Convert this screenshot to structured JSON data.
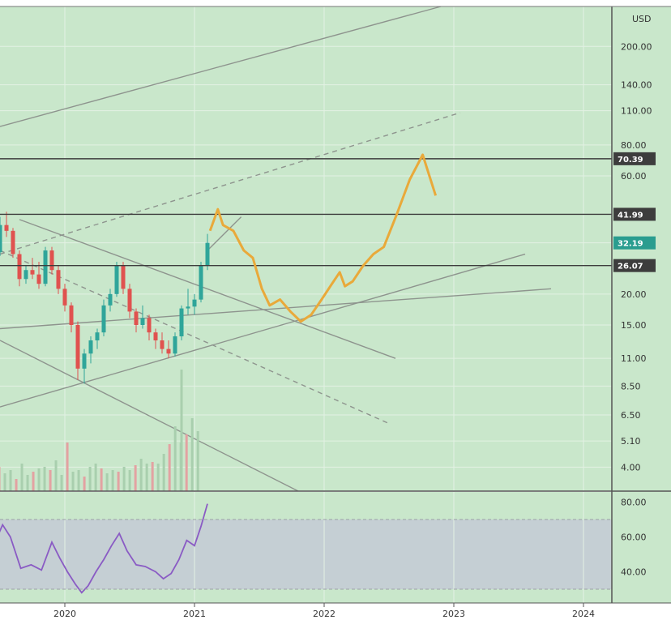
{
  "chart_data": {
    "type": "line",
    "price_axis": {
      "currency": "USD",
      "scale": "log",
      "range": [
        3.2,
        290
      ],
      "ticks": [
        "200.00",
        "140.00",
        "110.00",
        "80.00",
        "60.00",
        "41.99",
        "32.19",
        "26.07",
        "20.00",
        "15.00",
        "11.00",
        "8.50",
        "6.50",
        "5.10",
        "4.00"
      ]
    },
    "time_axis": {
      "ticks": [
        "2020",
        "2021",
        "2022",
        "2023",
        "2024"
      ]
    },
    "price_tags": [
      {
        "label": "70.39",
        "value": 70.39,
        "color": "#3d3d3d"
      },
      {
        "label": "41.99",
        "value": 41.99,
        "color": "#3d3d3d"
      },
      {
        "label": "32.19",
        "value": 32.19,
        "color": "#2a9d8f"
      },
      {
        "label": "26.07",
        "value": 26.07,
        "color": "#3d3d3d"
      }
    ],
    "horizontal_levels": [
      70.39,
      41.99,
      26.07
    ],
    "candles": [
      {
        "t": 2019.45,
        "o": 27.5,
        "h": 31,
        "l": 25.2,
        "c": 29.5
      },
      {
        "t": 2019.5,
        "o": 29.5,
        "h": 41,
        "l": 28.5,
        "c": 38
      },
      {
        "t": 2019.55,
        "o": 38,
        "h": 43,
        "l": 34,
        "c": 36
      },
      {
        "t": 2019.6,
        "o": 36,
        "h": 37,
        "l": 28,
        "c": 29
      },
      {
        "t": 2019.65,
        "o": 29,
        "h": 30,
        "l": 21.5,
        "c": 23
      },
      {
        "t": 2019.7,
        "o": 23,
        "h": 26,
        "l": 22,
        "c": 25
      },
      {
        "t": 2019.75,
        "o": 25,
        "h": 28,
        "l": 23,
        "c": 24
      },
      {
        "t": 2019.8,
        "o": 24,
        "h": 27,
        "l": 21,
        "c": 22
      },
      {
        "t": 2019.85,
        "o": 22,
        "h": 31,
        "l": 21.5,
        "c": 30
      },
      {
        "t": 2019.9,
        "o": 30,
        "h": 31,
        "l": 24,
        "c": 25
      },
      {
        "t": 2019.95,
        "o": 25,
        "h": 26,
        "l": 20,
        "c": 21
      },
      {
        "t": 2020.0,
        "o": 21,
        "h": 22,
        "l": 17,
        "c": 18
      },
      {
        "t": 2020.05,
        "o": 18,
        "h": 18.5,
        "l": 14,
        "c": 15
      },
      {
        "t": 2020.1,
        "o": 15,
        "h": 15.5,
        "l": 9,
        "c": 10
      },
      {
        "t": 2020.15,
        "o": 10,
        "h": 12,
        "l": 8.7,
        "c": 11.5
      },
      {
        "t": 2020.2,
        "o": 11.5,
        "h": 13.5,
        "l": 10.5,
        "c": 13
      },
      {
        "t": 2020.25,
        "o": 13,
        "h": 14.5,
        "l": 12,
        "c": 14
      },
      {
        "t": 2020.3,
        "o": 14,
        "h": 19,
        "l": 13.5,
        "c": 18
      },
      {
        "t": 2020.35,
        "o": 18,
        "h": 21,
        "l": 17,
        "c": 20
      },
      {
        "t": 2020.4,
        "o": 20,
        "h": 27,
        "l": 19.5,
        "c": 26
      },
      {
        "t": 2020.45,
        "o": 26,
        "h": 27,
        "l": 20,
        "c": 21
      },
      {
        "t": 2020.5,
        "o": 21,
        "h": 22,
        "l": 16,
        "c": 17
      },
      {
        "t": 2020.55,
        "o": 17,
        "h": 17.5,
        "l": 14,
        "c": 15
      },
      {
        "t": 2020.6,
        "o": 15,
        "h": 18,
        "l": 14.5,
        "c": 16
      },
      {
        "t": 2020.65,
        "o": 16,
        "h": 16.5,
        "l": 13,
        "c": 14
      },
      {
        "t": 2020.7,
        "o": 14,
        "h": 14.5,
        "l": 12,
        "c": 13
      },
      {
        "t": 2020.75,
        "o": 13,
        "h": 14,
        "l": 11.5,
        "c": 12
      },
      {
        "t": 2020.8,
        "o": 12,
        "h": 13,
        "l": 11,
        "c": 11.5
      },
      {
        "t": 2020.85,
        "o": 11.5,
        "h": 14,
        "l": 11.2,
        "c": 13.5
      },
      {
        "t": 2020.9,
        "o": 13.5,
        "h": 18,
        "l": 13,
        "c": 17.5
      },
      {
        "t": 2020.95,
        "o": 17.5,
        "h": 21,
        "l": 16.5,
        "c": 17.8
      },
      {
        "t": 2021.0,
        "o": 17.8,
        "h": 20,
        "l": 16.5,
        "c": 19
      },
      {
        "t": 2021.05,
        "o": 19,
        "h": 27,
        "l": 18.5,
        "c": 26
      },
      {
        "t": 2021.1,
        "o": 26,
        "h": 35,
        "l": 25,
        "c": 32.19
      }
    ],
    "projection": [
      {
        "t": 2021.12,
        "v": 36
      },
      {
        "t": 2021.18,
        "v": 44
      },
      {
        "t": 2021.22,
        "v": 38
      },
      {
        "t": 2021.3,
        "v": 36
      },
      {
        "t": 2021.38,
        "v": 30
      },
      {
        "t": 2021.45,
        "v": 28
      },
      {
        "t": 2021.52,
        "v": 21
      },
      {
        "t": 2021.58,
        "v": 18
      },
      {
        "t": 2021.66,
        "v": 19
      },
      {
        "t": 2021.74,
        "v": 17
      },
      {
        "t": 2021.82,
        "v": 15.5
      },
      {
        "t": 2021.9,
        "v": 16.5
      },
      {
        "t": 2021.98,
        "v": 19
      },
      {
        "t": 2022.06,
        "v": 22
      },
      {
        "t": 2022.12,
        "v": 24.5
      },
      {
        "t": 2022.16,
        "v": 21.5
      },
      {
        "t": 2022.22,
        "v": 22.5
      },
      {
        "t": 2022.3,
        "v": 26
      },
      {
        "t": 2022.38,
        "v": 29
      },
      {
        "t": 2022.46,
        "v": 31
      },
      {
        "t": 2022.56,
        "v": 42
      },
      {
        "t": 2022.66,
        "v": 58
      },
      {
        "t": 2022.76,
        "v": 73
      },
      {
        "t": 2022.86,
        "v": 50
      }
    ],
    "rsi": {
      "axis_ticks": [
        "80.00",
        "60.00",
        "40.00"
      ],
      "band": [
        30,
        70
      ],
      "points": [
        {
          "t": 2019.45,
          "v": 55
        },
        {
          "t": 2019.52,
          "v": 67
        },
        {
          "t": 2019.58,
          "v": 60
        },
        {
          "t": 2019.66,
          "v": 42
        },
        {
          "t": 2019.74,
          "v": 44
        },
        {
          "t": 2019.82,
          "v": 41
        },
        {
          "t": 2019.9,
          "v": 57
        },
        {
          "t": 2019.96,
          "v": 48
        },
        {
          "t": 2020.02,
          "v": 40
        },
        {
          "t": 2020.08,
          "v": 33
        },
        {
          "t": 2020.13,
          "v": 28
        },
        {
          "t": 2020.18,
          "v": 32
        },
        {
          "t": 2020.24,
          "v": 40
        },
        {
          "t": 2020.3,
          "v": 47
        },
        {
          "t": 2020.36,
          "v": 55
        },
        {
          "t": 2020.42,
          "v": 62
        },
        {
          "t": 2020.48,
          "v": 52
        },
        {
          "t": 2020.55,
          "v": 44
        },
        {
          "t": 2020.62,
          "v": 43
        },
        {
          "t": 2020.7,
          "v": 40
        },
        {
          "t": 2020.76,
          "v": 36
        },
        {
          "t": 2020.82,
          "v": 39
        },
        {
          "t": 2020.88,
          "v": 47
        },
        {
          "t": 2020.94,
          "v": 58
        },
        {
          "t": 2021.0,
          "v": 55
        },
        {
          "t": 2021.05,
          "v": 66
        },
        {
          "t": 2021.1,
          "v": 79
        }
      ]
    }
  }
}
